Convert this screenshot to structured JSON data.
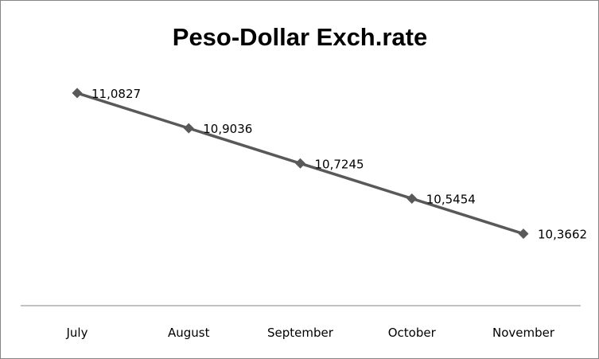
{
  "chart_data": {
    "type": "line",
    "title": "Peso-Dollar Exch.rate",
    "xlabel": "",
    "ylabel": "",
    "categories": [
      "July",
      "August",
      "September",
      "October",
      "November"
    ],
    "series": [
      {
        "name": "Peso-Dollar Exch.rate",
        "values": [
          11.0827,
          10.9036,
          10.7245,
          10.5454,
          10.3662
        ],
        "labels": [
          "11,0827",
          "10,9036",
          "10,7245",
          "10,5454",
          "10,3662"
        ]
      }
    ],
    "ylim": [
      10,
      11.2
    ],
    "grid": false,
    "legend": "none",
    "colors": {
      "line": "#595959",
      "axis": "#868686"
    }
  }
}
